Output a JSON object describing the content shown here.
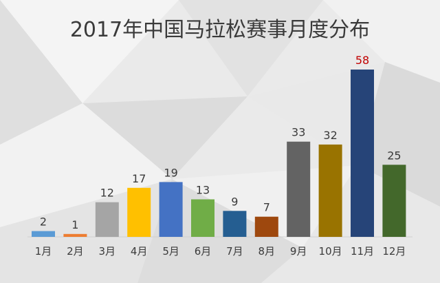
{
  "chart_data": {
    "type": "bar",
    "title": "2017年中国马拉松赛事月度分布",
    "categories": [
      "1月",
      "2月",
      "3月",
      "4月",
      "5月",
      "6月",
      "7月",
      "8月",
      "9月",
      "10月",
      "11月",
      "12月"
    ],
    "values": [
      2,
      1,
      12,
      17,
      19,
      13,
      9,
      7,
      33,
      32,
      58,
      25
    ],
    "colors": [
      "#5b9bd5",
      "#ed7d31",
      "#a5a5a5",
      "#ffc000",
      "#4472c4",
      "#70ad47",
      "#255e91",
      "#9e480e",
      "#636363",
      "#997300",
      "#264478",
      "#43682b"
    ],
    "highlight": {
      "index": 10,
      "label_color": "#c00000"
    },
    "ylim": [
      0,
      58
    ],
    "grid": false,
    "legend": "none",
    "xlabel": "",
    "ylabel": ""
  }
}
